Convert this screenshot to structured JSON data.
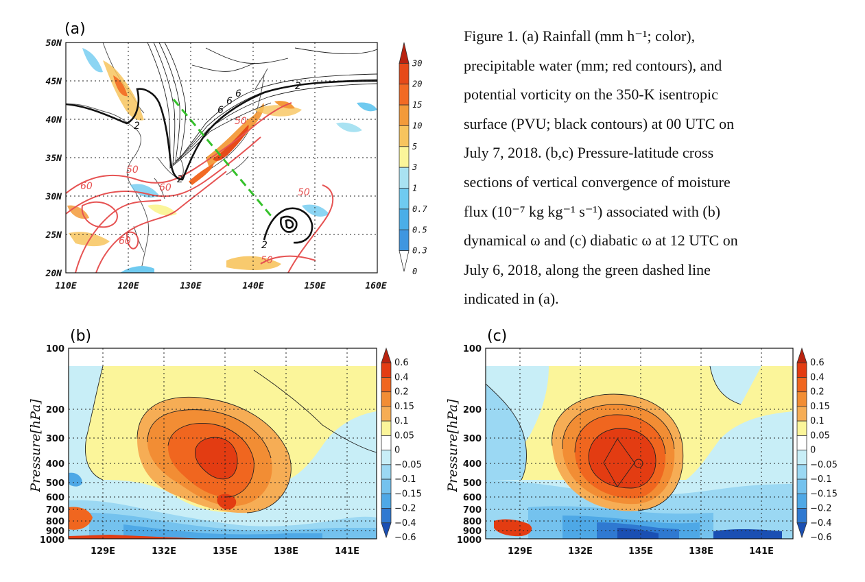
{
  "caption": {
    "lines": [
      "Figure 1. (a) Rainfall (mm h⁻¹; color),",
      "precipitable water (mm; red contours), and",
      "potential vorticity on the 350-K isentropic",
      "surface (PVU; black contours) at 00 UTC on",
      "July 7, 2018. (b,c) Pressure-latitude cross",
      "sections of vertical convergence of moisture",
      "flux (10⁻⁷ kg kg⁻¹ s⁻¹) associated with (b)",
      "dynamical ω and (c) diabatic ω at 12 UTC on",
      "July 6, 2018, along the green dashed line",
      "indicated in (a)."
    ]
  },
  "panel_a": {
    "letter": "(a)",
    "lat_ticks": [
      "50N",
      "45N",
      "40N",
      "35N",
      "30N",
      "25N",
      "20N"
    ],
    "lon_ticks": [
      "110E",
      "120E",
      "130E",
      "140E",
      "150E",
      "160E"
    ],
    "colorbar_labels": [
      "30",
      "20",
      "15",
      "10",
      "5",
      "3",
      "1",
      "0.7",
      "0.5",
      "0.3",
      "0"
    ],
    "colorbar_colors": [
      "#b9230f",
      "#e64a19",
      "#f26a24",
      "#f39a3a",
      "#f7c45e",
      "#fbf59a",
      "#a9e2f2",
      "#6fcaf0",
      "#4aaee8",
      "#3f96e0",
      "#ffffff"
    ],
    "red_contour_labels": [
      "50",
      "60",
      "60",
      "60",
      "50",
      "50",
      "50"
    ],
    "black_contour_labels": [
      "2",
      "2",
      "2",
      "2",
      "6",
      "6",
      "6"
    ],
    "green_line_color": "#35c12b"
  },
  "panel_b": {
    "letter": "(b)",
    "ylabel": "Pressure[hPa]",
    "pressure_ticks": [
      "100",
      "200",
      "300",
      "400",
      "500",
      "600",
      "700",
      "800",
      "900",
      "1000"
    ],
    "lon_ticks": [
      "129E",
      "132E",
      "135E",
      "138E",
      "141E"
    ],
    "colorbar_labels": [
      "0.6",
      "0.4",
      "0.2",
      "0.15",
      "0.1",
      "0.05",
      "0",
      "−0.05",
      "−0.1",
      "−0.15",
      "−0.2",
      "−0.4",
      "−0.6"
    ]
  },
  "panel_c": {
    "letter": "(c)",
    "ylabel": "Pressure[hPa]",
    "pressure_ticks": [
      "100",
      "200",
      "300",
      "400",
      "500",
      "600",
      "700",
      "800",
      "900",
      "1000"
    ],
    "lon_ticks": [
      "129E",
      "132E",
      "135E",
      "138E",
      "141E"
    ],
    "colorbar_labels": [
      "0.6",
      "0.4",
      "0.2",
      "0.15",
      "0.1",
      "0.05",
      "0",
      "−0.05",
      "−0.1",
      "−0.15",
      "−0.2",
      "−0.4",
      "−0.6"
    ]
  },
  "xsec_colorbar_colors": [
    "#b9230f",
    "#e33c12",
    "#f0661f",
    "#f28d34",
    "#f6ad55",
    "#fbf59a",
    "#ffffff",
    "#c8eef7",
    "#9bd8f3",
    "#74c2ee",
    "#4ea8e6",
    "#2f79d1",
    "#1a4fb3"
  ]
}
